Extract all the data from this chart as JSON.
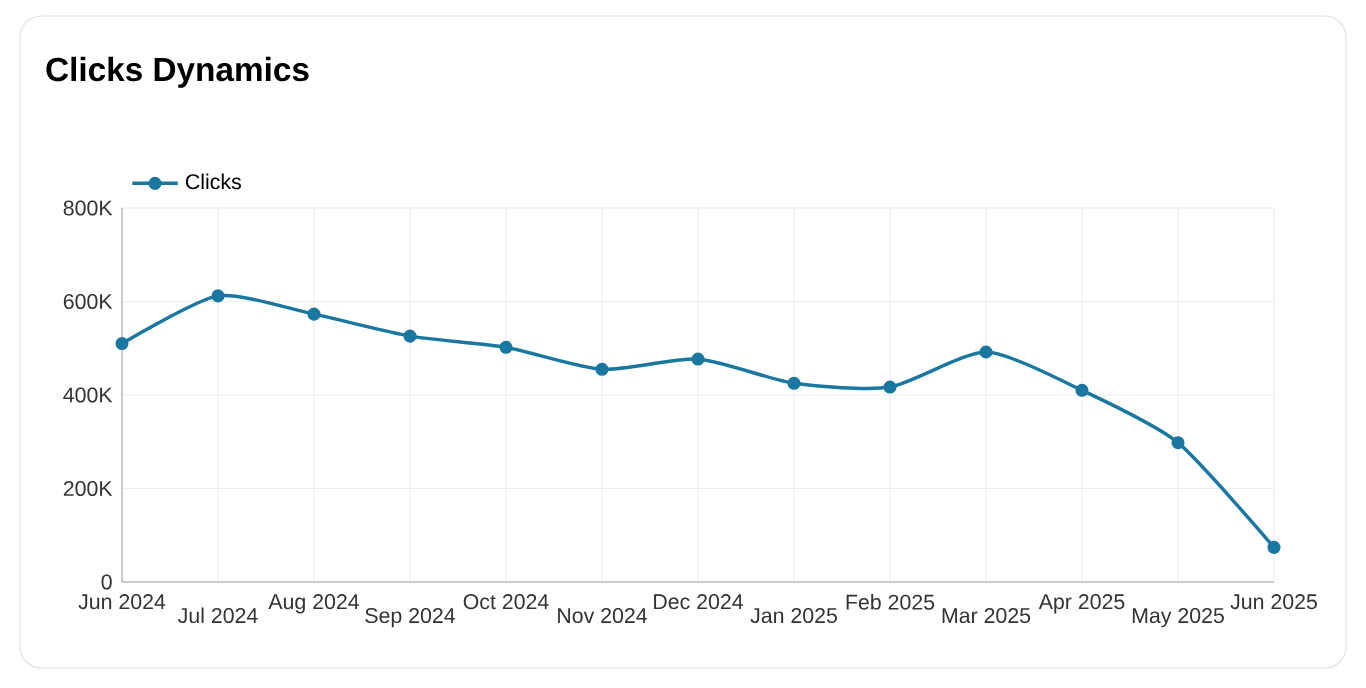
{
  "chart_data": {
    "type": "line",
    "title": "Clicks Dynamics",
    "categories": [
      "Jun 2024",
      "Jul 2024",
      "Aug 2024",
      "Sep 2024",
      "Oct 2024",
      "Nov 2024",
      "Dec 2024",
      "Jan 2025",
      "Feb 2025",
      "Mar 2025",
      "Apr 2025",
      "May 2025",
      "Jun 2025"
    ],
    "series": [
      {
        "name": "Clicks",
        "color": "#1a77a0",
        "values": [
          510000,
          612000,
          573000,
          526000,
          502000,
          455000,
          477000,
          425000,
          417000,
          492000,
          410000,
          298000,
          74000
        ]
      }
    ],
    "ylim": [
      0,
      800000
    ],
    "yticks": [
      0,
      {
        "value": 200000,
        "label": "200K"
      },
      {
        "value": 400000,
        "label": "400K"
      },
      {
        "value": 600000,
        "label": "600K"
      },
      {
        "value": 800000,
        "label": "800K"
      }
    ],
    "grid": true,
    "legend": "top left",
    "marker": "circle",
    "line_style": "solid"
  }
}
